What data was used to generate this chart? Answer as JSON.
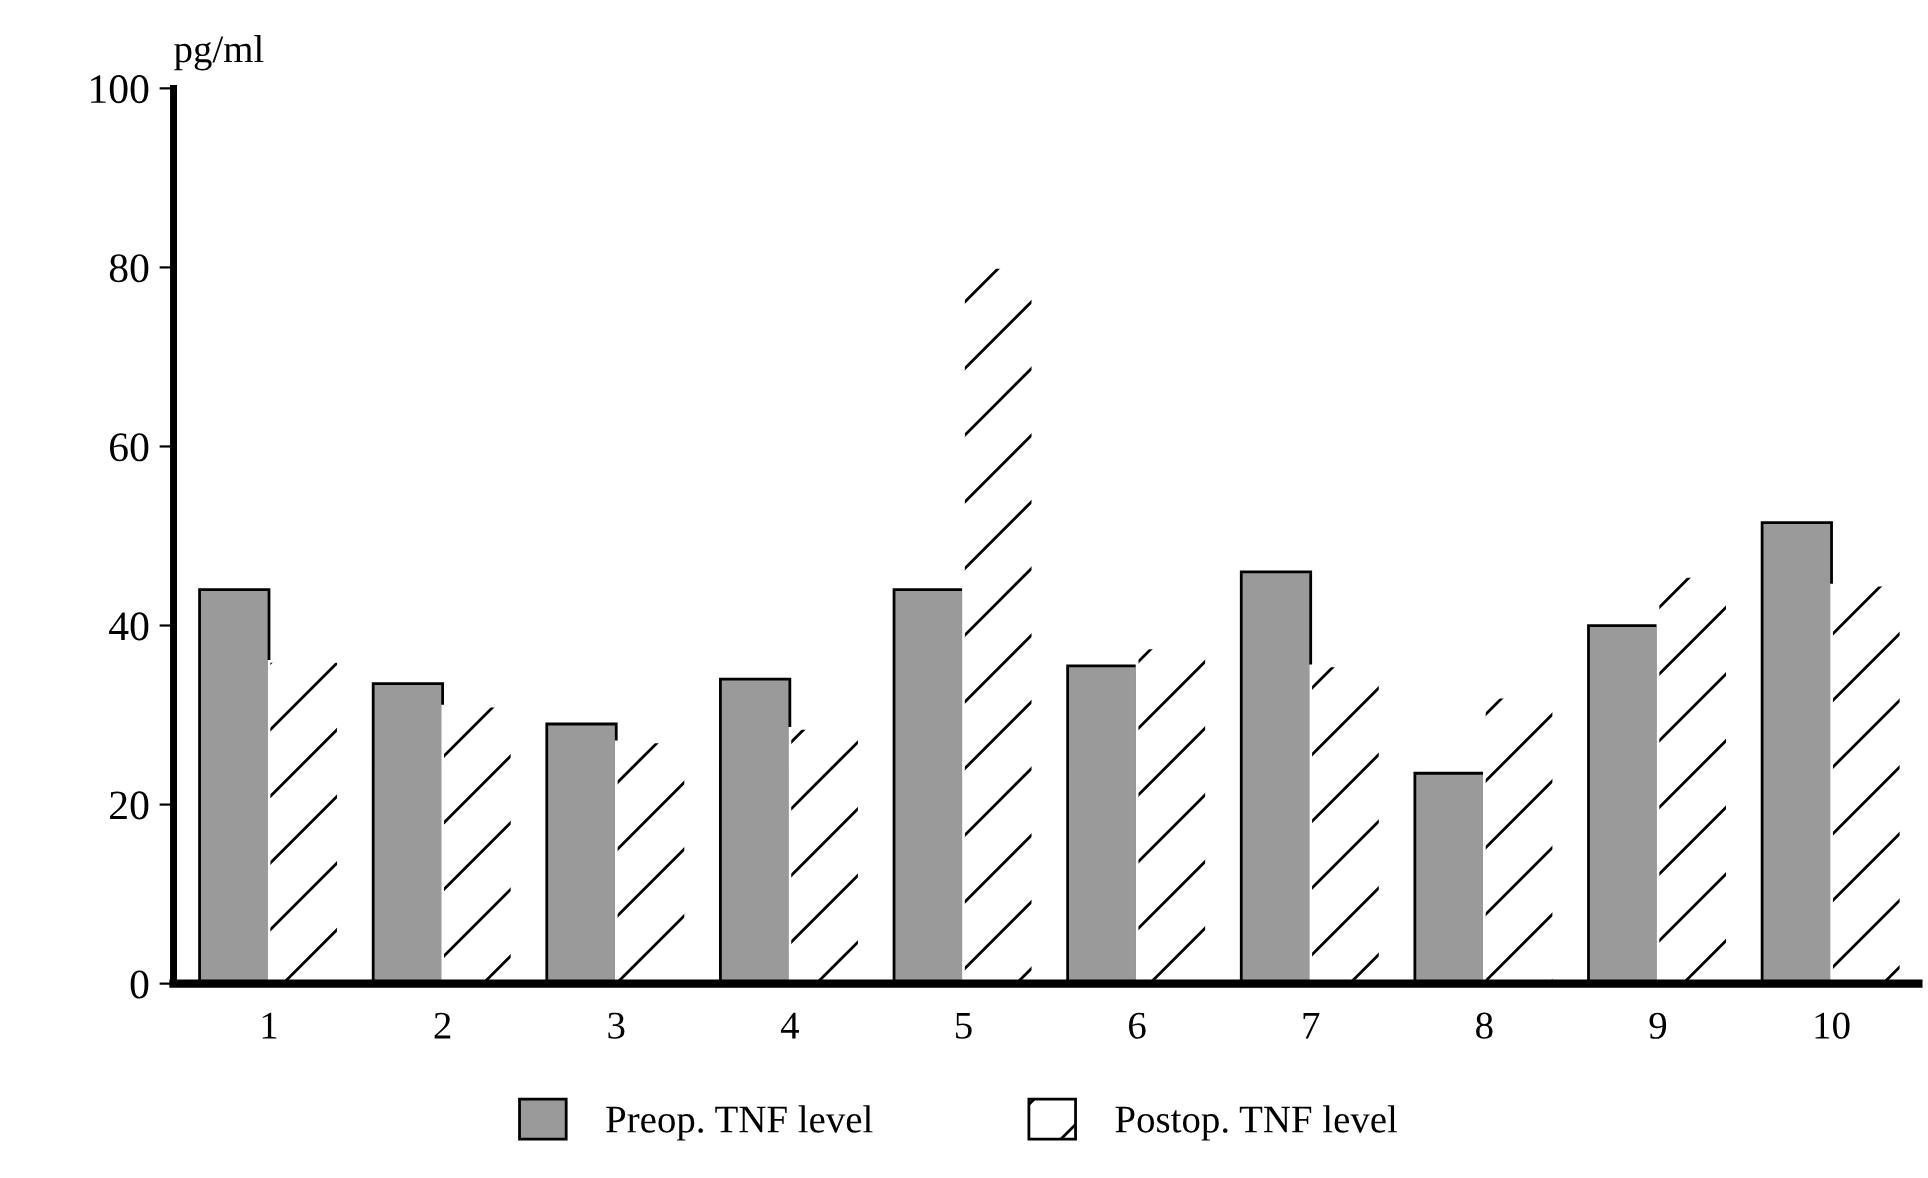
{
  "chart_data": {
    "type": "bar",
    "ylabel": "pg/ml",
    "categories": [
      "1",
      "2",
      "3",
      "4",
      "5",
      "6",
      "7",
      "8",
      "9",
      "10"
    ],
    "series": [
      {
        "name": "Preop. TNF level",
        "color": "#9a9a9a",
        "values": [
          44,
          33.5,
          29,
          34,
          44,
          35.5,
          46,
          23.5,
          40,
          51.5
        ]
      },
      {
        "name": "Postop. TNF level",
        "color": "#ffffff",
        "values": [
          36,
          31,
          27,
          28.5,
          80,
          37.5,
          35.5,
          32,
          45.5,
          44.5
        ]
      }
    ],
    "ylim": [
      0,
      100
    ],
    "yticks": [
      0,
      20,
      40,
      60,
      80,
      100
    ],
    "grid": false,
    "legend": "bottom"
  }
}
